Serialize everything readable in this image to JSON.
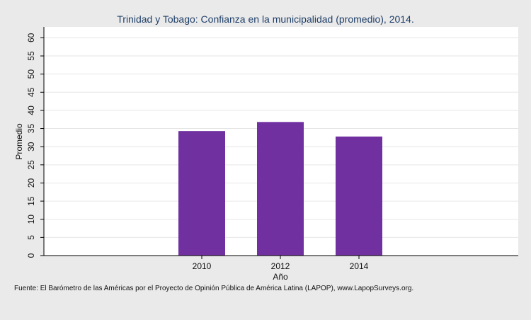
{
  "chart_data": {
    "type": "bar",
    "title": "Trinidad y Tobago: Confianza en la municipalidad (promedio), 2014.",
    "xlabel": "Año",
    "ylabel": "Promedio",
    "categories": [
      "2010",
      "2012",
      "2014"
    ],
    "values": [
      34.3,
      36.8,
      32.8
    ],
    "ylim": [
      0,
      63
    ],
    "yticks": [
      "0",
      "5",
      "10",
      "15",
      "20",
      "25",
      "30",
      "35",
      "40",
      "45",
      "50",
      "55",
      "60"
    ],
    "grid": true,
    "legend": "none",
    "bar_color": "#7030a0",
    "source": "Fuente: El Barómetro de las Américas por el Proyecto de Opinión Pública de América Latina (LAPOP), www.LapopSurveys.org."
  }
}
